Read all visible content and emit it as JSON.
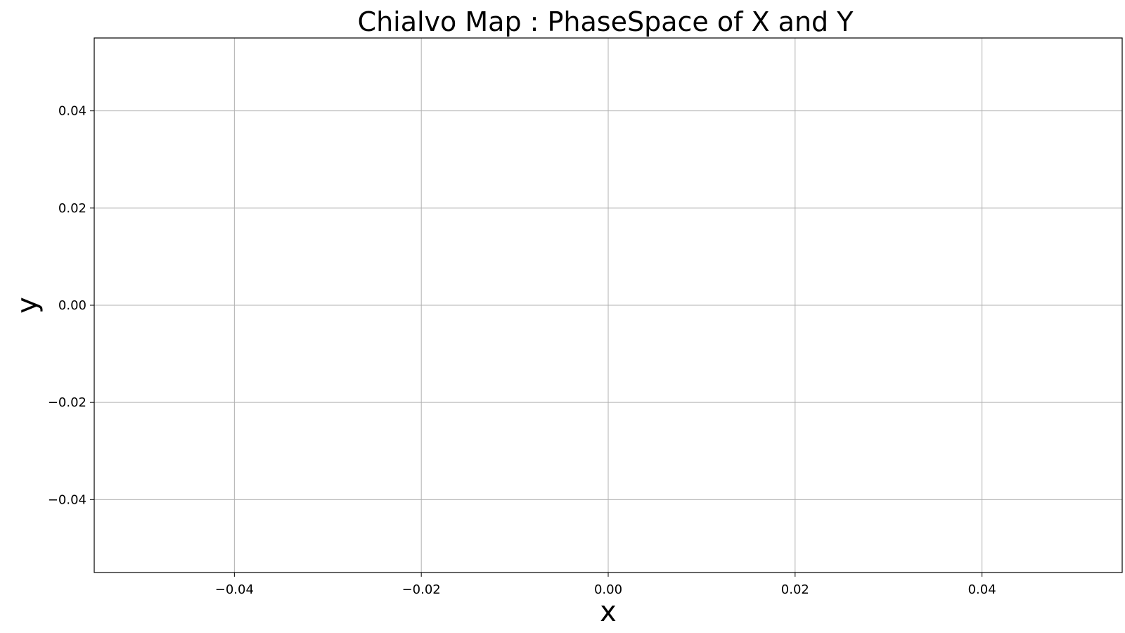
{
  "chart_data": {
    "type": "scatter",
    "title": "Chialvo Map : PhaseSpace of X and Y",
    "xlabel": "x",
    "ylabel": "y",
    "xlim": [
      -0.055,
      0.055
    ],
    "ylim": [
      -0.055,
      0.055
    ],
    "x_ticks": [
      -0.04,
      -0.02,
      0.0,
      0.02,
      0.04
    ],
    "x_tick_labels": [
      "−0.04",
      "−0.02",
      "0.00",
      "0.02",
      "0.04"
    ],
    "y_ticks": [
      -0.04,
      -0.02,
      0.0,
      0.02,
      0.04
    ],
    "y_tick_labels": [
      "−0.04",
      "−0.02",
      "0.00",
      "0.02",
      "0.04"
    ],
    "grid": true,
    "series": [
      {
        "x": [],
        "y": []
      }
    ]
  }
}
